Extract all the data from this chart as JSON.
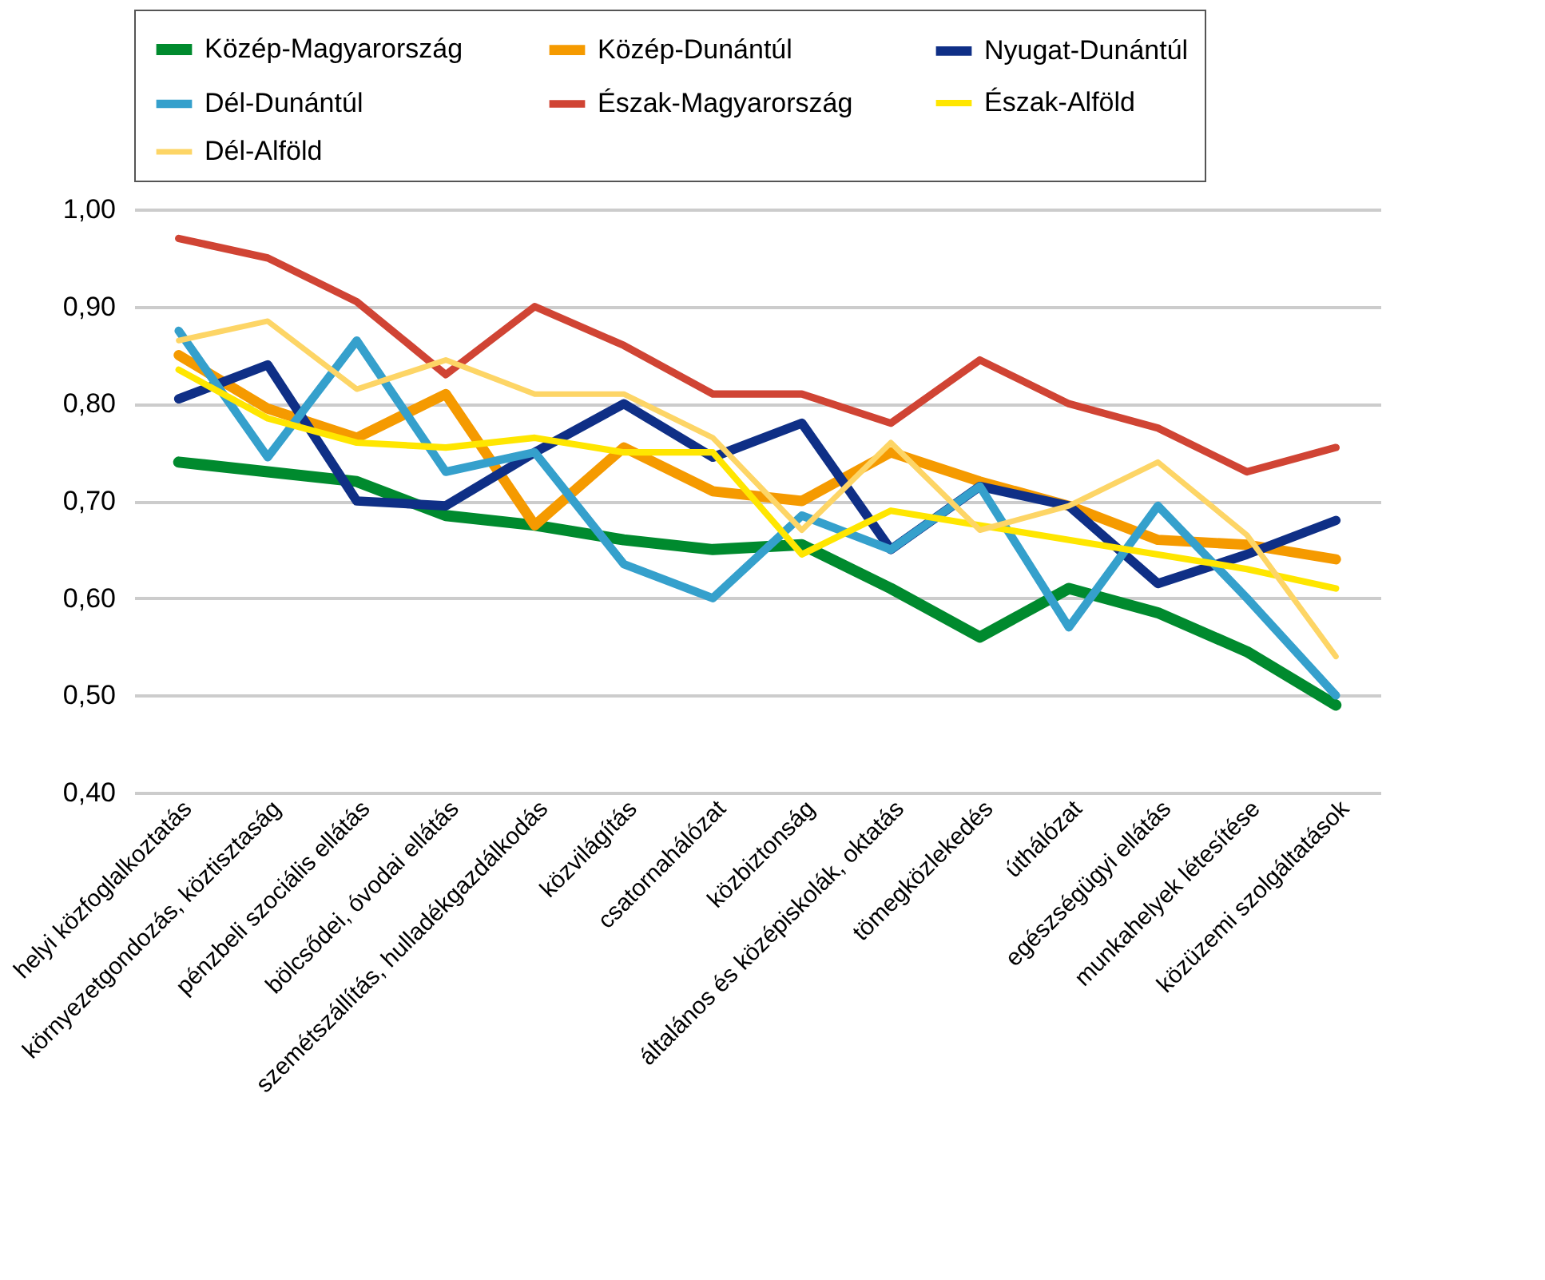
{
  "chart_data": {
    "type": "line",
    "categories": [
      "helyi közfoglalkoztatás",
      "környezetgondozás, köztisztaság",
      "pénzbeli szociális ellátás",
      "bölcsődei, óvodai ellátás",
      "szemétszállítás, hulladékgazdálkodás",
      "közvilágítás",
      "csatornahálózat",
      "közbiztonság",
      "általános és középiskolák, oktatás",
      "tömegközlekedés",
      "úthálózat",
      "egészségügyi ellátás",
      "munkahelyek létesítése",
      "közüzemi szolgáltatások"
    ],
    "series": [
      {
        "name": "Közép-Magyarország",
        "color": "#008a2e",
        "values": [
          0.74,
          0.73,
          0.72,
          0.685,
          0.675,
          0.66,
          0.65,
          0.655,
          0.61,
          0.56,
          0.61,
          0.585,
          0.545,
          0.49
        ]
      },
      {
        "name": "Közép-Dunántúl",
        "color": "#f59a00",
        "values": [
          0.85,
          0.795,
          0.765,
          0.81,
          0.675,
          0.755,
          0.71,
          0.7,
          0.75,
          0.72,
          0.695,
          0.66,
          0.655,
          0.64
        ]
      },
      {
        "name": "Nyugat-Dunántúl",
        "color": "#0f2f86",
        "values": [
          0.805,
          0.84,
          0.7,
          0.695,
          0.75,
          0.8,
          0.745,
          0.78,
          0.65,
          0.715,
          0.695,
          0.615,
          0.645,
          0.68
        ]
      },
      {
        "name": "Dél-Dunántúl",
        "color": "#35a0cc",
        "values": [
          0.875,
          0.745,
          0.865,
          0.73,
          0.75,
          0.635,
          0.6,
          0.685,
          0.65,
          0.715,
          0.57,
          0.695,
          0.6,
          0.5
        ]
      },
      {
        "name": "Észak-Magyarország",
        "color": "#d04434",
        "values": [
          0.97,
          0.95,
          0.905,
          0.83,
          0.9,
          0.86,
          0.81,
          0.81,
          0.78,
          0.845,
          0.8,
          0.775,
          0.73,
          0.755
        ]
      },
      {
        "name": "Észak-Alföld",
        "color": "#ffe600",
        "values": [
          0.835,
          0.785,
          0.76,
          0.755,
          0.765,
          0.75,
          0.75,
          0.645,
          0.69,
          0.675,
          0.66,
          0.645,
          0.63,
          0.61
        ]
      },
      {
        "name": "Dél-Alföld",
        "color": "#fdd566",
        "values": [
          0.865,
          0.885,
          0.815,
          0.845,
          0.81,
          0.81,
          0.765,
          0.67,
          0.76,
          0.67,
          0.695,
          0.74,
          0.665,
          0.54
        ]
      }
    ],
    "ylim": [
      0.4,
      1.0
    ],
    "yticks": [
      {
        "value": 0.4,
        "label": "0,40"
      },
      {
        "value": 0.5,
        "label": "0,50"
      },
      {
        "value": 0.6,
        "label": "0,60"
      },
      {
        "value": 0.7,
        "label": "0,70"
      },
      {
        "value": 0.8,
        "label": "0,80"
      },
      {
        "value": 0.9,
        "label": "0,90"
      },
      {
        "value": 1.0,
        "label": "1,00"
      }
    ],
    "grid": "y",
    "legend": "top",
    "line_style": "solid",
    "marker": "none"
  }
}
